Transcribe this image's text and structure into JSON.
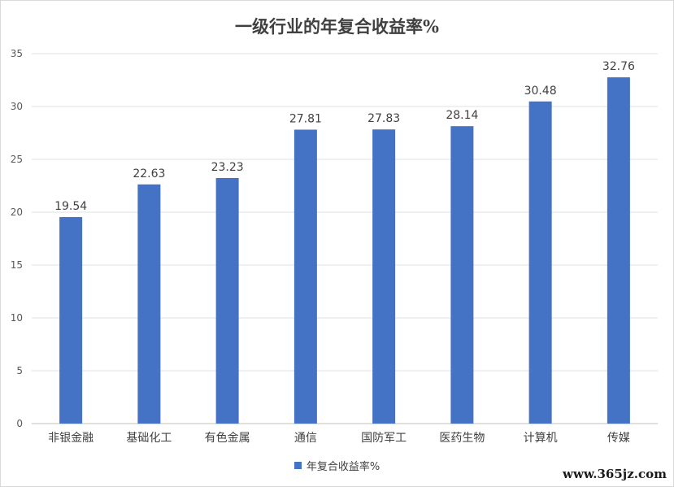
{
  "chart_data": {
    "type": "bar",
    "title": "一级行业的年复合收益率%",
    "categories": [
      "非银金融",
      "基础化工",
      "有色金属",
      "通信",
      "国防军工",
      "医药生物",
      "计算机",
      "传媒"
    ],
    "series": [
      {
        "name": "年复合收益率%",
        "values": [
          19.54,
          22.63,
          23.23,
          27.81,
          27.83,
          28.14,
          30.48,
          32.76
        ],
        "color": "#4472c4"
      }
    ],
    "xlabel": "",
    "ylabel": "",
    "ylim": [
      0,
      35
    ],
    "yticks": [
      0,
      5,
      10,
      15,
      20,
      25,
      30,
      35
    ],
    "grid": true,
    "legend": "bottom",
    "data_labels": true
  },
  "watermark": "www.365jz.com"
}
